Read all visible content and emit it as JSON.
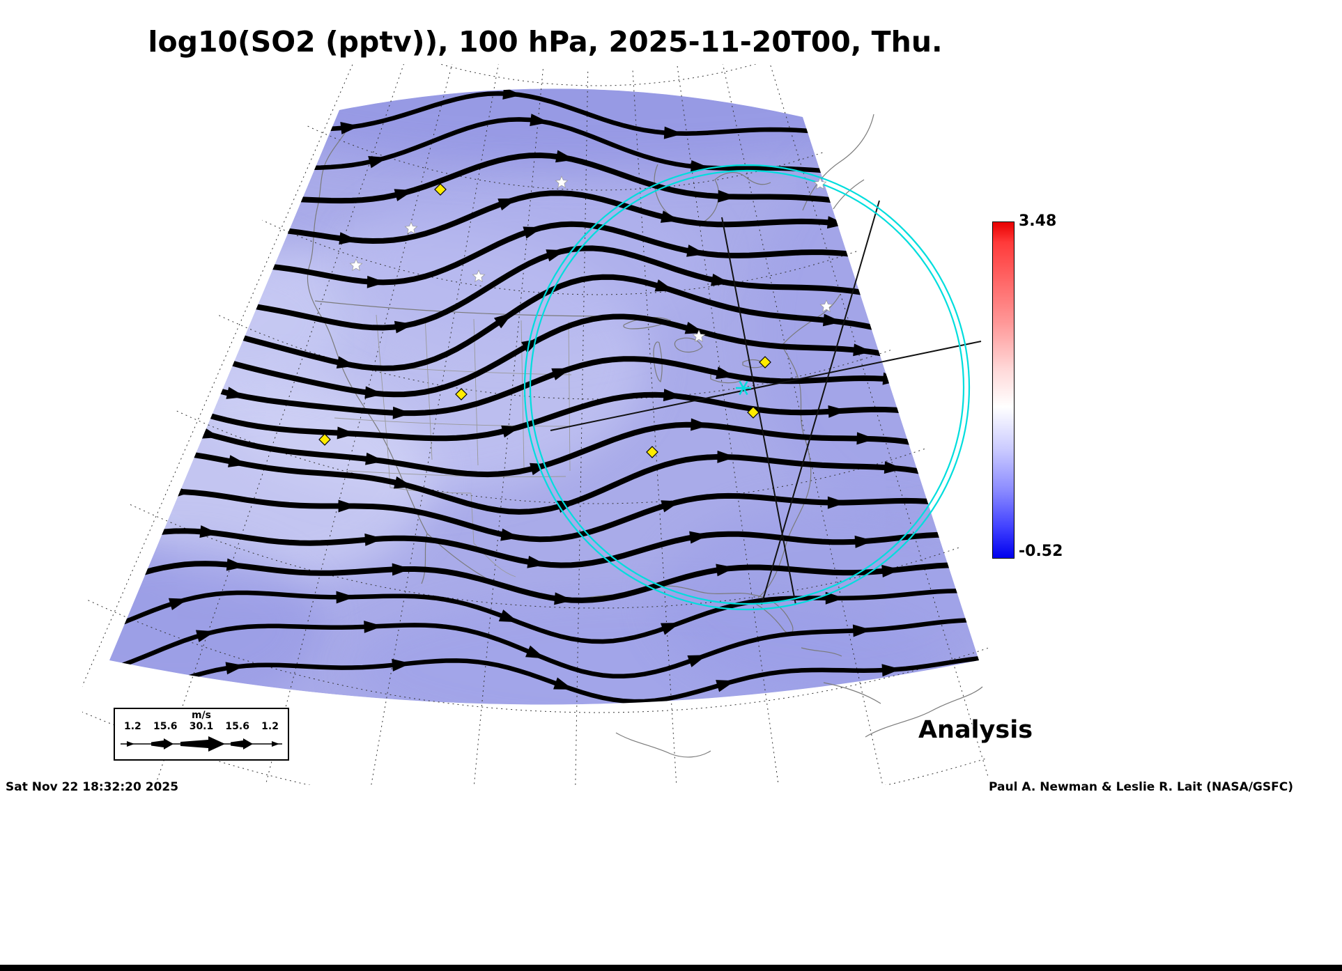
{
  "title": "log10(SO2 (pptv)), 100 hPa, 2025-11-20T00, Thu.",
  "colorbar": {
    "max_label": "3.48",
    "min_label": "-0.52"
  },
  "analysis_label": "Analysis",
  "wind_legend": {
    "unit": "m/s",
    "values": [
      "1.2",
      "15.6",
      "30.1",
      "15.6",
      "1.2"
    ]
  },
  "footer": {
    "timestamp": "Sat Nov 22 18:32:20 2025",
    "credit": "Paul A. Newman & Leslie R. Lait (NASA/GSFC)"
  },
  "chart_data": {
    "type": "heatmap",
    "title": "log10(SO2 (pptv)), 100 hPa, 2025-11-20T00, Thu.",
    "variable": "log10(SO2 (pptv))",
    "pressure_level": "100 hPa",
    "valid_time": "2025-11-20T00, Thu.",
    "colorbar": {
      "min": -0.52,
      "max": 3.48,
      "palette": [
        "#0000ee",
        "#ffffff",
        "#e80000"
      ],
      "orientation": "vertical",
      "position": "right"
    },
    "field_character": "values in the low (blue) end of the scale over the whole mapped region",
    "wind_vector_legend_ms": [
      1.2,
      15.6,
      30.1,
      15.6,
      1.2
    ],
    "annotation": "Analysis",
    "overlays": [
      "black wind streamlines with arrowheads",
      "dashed latitude-longitude graticule",
      "gray coastlines and state borders",
      "double cyan range circle with cyan center marker",
      "6 yellow diamond markers",
      "7 white star markers",
      "3 straight black cross-section lines"
    ],
    "region": "North America, conic map projection"
  }
}
